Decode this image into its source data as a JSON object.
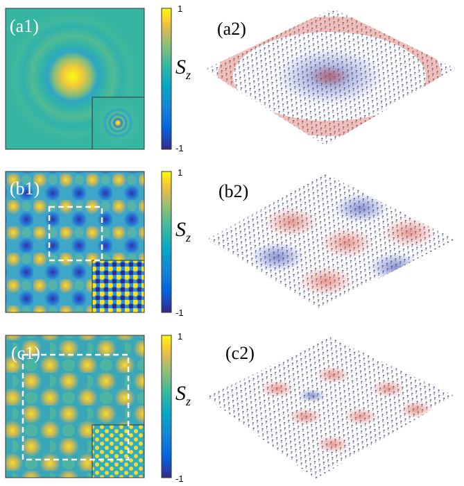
{
  "panels": [
    {
      "map_label": "(a1)",
      "vector_label": "(a2)",
      "colorbar": {
        "max": "1",
        "min": "-1",
        "symbol": "S",
        "subscript": "z"
      }
    },
    {
      "map_label": "(b1)",
      "vector_label": "(b2)",
      "colorbar": {
        "max": "1",
        "min": "-1",
        "symbol": "S",
        "subscript": "z"
      }
    },
    {
      "map_label": "(c1)",
      "vector_label": "(c2)",
      "colorbar": {
        "max": "1",
        "min": "-1",
        "symbol": "S",
        "subscript": "z"
      }
    }
  ]
}
